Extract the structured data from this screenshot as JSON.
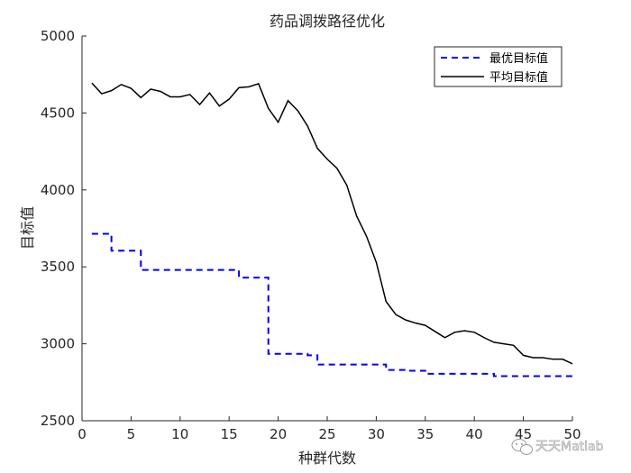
{
  "chart_data": {
    "type": "line",
    "title": "药品调拨路径优化",
    "xlabel": "种群代数",
    "ylabel": "目标值",
    "xlim": [
      0,
      50
    ],
    "ylim": [
      2500,
      5000
    ],
    "xticks": [
      0,
      5,
      10,
      15,
      20,
      25,
      30,
      35,
      40,
      45,
      50
    ],
    "yticks": [
      2500,
      3000,
      3500,
      4000,
      4500,
      5000
    ],
    "grid": false,
    "legend_position": "top-right",
    "series": [
      {
        "name": "最优目标值",
        "color": "#0000ff",
        "style": "dashed",
        "step": true,
        "x": [
          1,
          2,
          3,
          4,
          5,
          6,
          7,
          8,
          9,
          10,
          11,
          12,
          13,
          14,
          15,
          16,
          17,
          18,
          19,
          20,
          21,
          22,
          23,
          24,
          25,
          26,
          27,
          28,
          29,
          30,
          31,
          32,
          33,
          34,
          35,
          36,
          37,
          38,
          39,
          40,
          41,
          42,
          43,
          44,
          45,
          46,
          47,
          48,
          49,
          50
        ],
        "y": [
          3715,
          3715,
          3605,
          3605,
          3605,
          3480,
          3480,
          3480,
          3480,
          3480,
          3480,
          3480,
          3480,
          3480,
          3480,
          3430,
          3430,
          3430,
          2935,
          2935,
          2935,
          2935,
          2925,
          2865,
          2865,
          2865,
          2865,
          2865,
          2865,
          2865,
          2830,
          2830,
          2825,
          2825,
          2805,
          2805,
          2805,
          2805,
          2805,
          2805,
          2805,
          2790,
          2790,
          2790,
          2790,
          2790,
          2790,
          2790,
          2790,
          2790
        ]
      },
      {
        "name": "平均目标值",
        "color": "#000000",
        "style": "solid",
        "step": false,
        "x": [
          1,
          2,
          3,
          4,
          5,
          6,
          7,
          8,
          9,
          10,
          11,
          12,
          13,
          14,
          15,
          16,
          17,
          18,
          19,
          20,
          21,
          22,
          23,
          24,
          25,
          26,
          27,
          28,
          29,
          30,
          31,
          32,
          33,
          34,
          35,
          36,
          37,
          38,
          39,
          40,
          41,
          42,
          43,
          44,
          45,
          46,
          47,
          48,
          49,
          50
        ],
        "y": [
          4695,
          4625,
          4645,
          4685,
          4660,
          4600,
          4655,
          4640,
          4605,
          4605,
          4620,
          4555,
          4630,
          4545,
          4590,
          4665,
          4670,
          4690,
          4530,
          4440,
          4580,
          4515,
          4415,
          4270,
          4200,
          4140,
          4030,
          3830,
          3700,
          3530,
          3275,
          3190,
          3155,
          3135,
          3120,
          3080,
          3040,
          3075,
          3085,
          3075,
          3040,
          3010,
          3000,
          2990,
          2925,
          2910,
          2910,
          2900,
          2900,
          2870
        ]
      }
    ]
  },
  "watermark": {
    "text": "天天Matlab",
    "icon": "wechat-icon"
  }
}
